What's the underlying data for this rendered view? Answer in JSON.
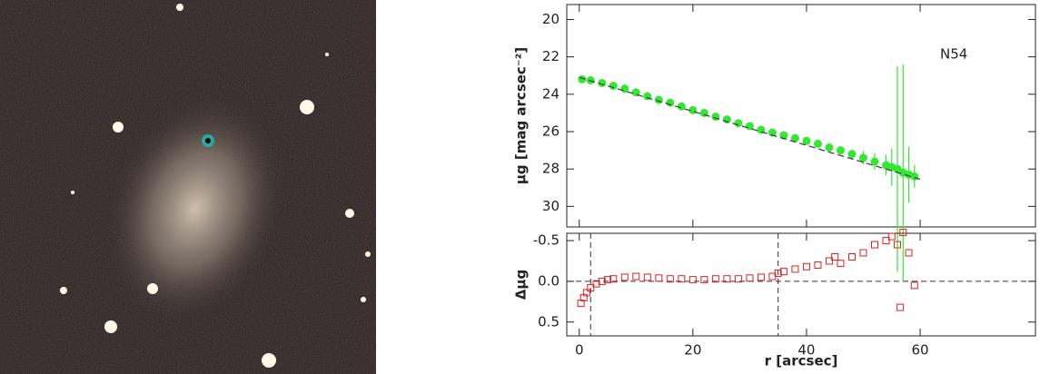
{
  "chart_data": [
    {
      "type": "scatter",
      "ylabel": "μg [mag arcsec⁻²]",
      "annotation": "N54",
      "xlim": [
        -2.2,
        80.3
      ],
      "xticks": [
        0,
        20,
        40,
        60
      ],
      "show_xtick_labels": false,
      "ylim": [
        31.1,
        19.2
      ],
      "yticks": [
        20,
        22,
        24,
        26,
        28,
        30
      ],
      "series": [
        {
          "color": "#33e833",
          "marker": "circle",
          "x": [
            0.5,
            2,
            4,
            6,
            8,
            10,
            12,
            14,
            16,
            18,
            20,
            22,
            24,
            26,
            28,
            30,
            32,
            34,
            36,
            38,
            40,
            42,
            44,
            46,
            48,
            50,
            52,
            54,
            55,
            56,
            57,
            58,
            59
          ],
          "values": [
            23.2,
            23.25,
            23.4,
            23.55,
            23.7,
            23.9,
            24.1,
            24.3,
            24.45,
            24.65,
            24.85,
            25.0,
            25.2,
            25.35,
            25.55,
            25.7,
            25.9,
            26.05,
            26.2,
            26.35,
            26.5,
            26.65,
            26.85,
            27.0,
            27.2,
            27.4,
            27.6,
            27.8,
            27.9,
            28.0,
            28.2,
            28.3,
            28.4
          ],
          "errors": [
            0.05,
            0.05,
            0.05,
            0.05,
            0.05,
            0.05,
            0.05,
            0.05,
            0.05,
            0.05,
            0.05,
            0.05,
            0.05,
            0.05,
            0.05,
            0.05,
            0.05,
            0.05,
            0.05,
            0.05,
            0.05,
            0.1,
            0.15,
            0.2,
            0.25,
            0.35,
            0.45,
            0.55,
            1.0,
            5.5,
            5.8,
            1.5,
            0.6
          ]
        },
        {
          "color": "#444444",
          "style": "dashed",
          "x": [
            0,
            60
          ],
          "values": [
            23.1,
            28.55
          ]
        }
      ]
    },
    {
      "type": "scatter",
      "xlabel": "r [arcsec]",
      "ylabel": "Δμg",
      "xlim": [
        -2.2,
        80.3
      ],
      "xticks": [
        0,
        20,
        40,
        60
      ],
      "show_xtick_labels": true,
      "ylim": [
        0.67,
        -0.59
      ],
      "yticks": [
        -0.5,
        {
          "value": 0,
          "label": "0.0"
        },
        0.5
      ],
      "hlines": [
        0
      ],
      "vlines": [
        2,
        35
      ],
      "series": [
        {
          "color": "#e02020",
          "marker": "square",
          "x": [
            0.3,
            0.8,
            1.3,
            2,
            3,
            4,
            5,
            6,
            8,
            10,
            12,
            14,
            16,
            18,
            20,
            22,
            24,
            26,
            28,
            30,
            32,
            34,
            35,
            36,
            38,
            40,
            42,
            44,
            45,
            46,
            48,
            50,
            52,
            54,
            55,
            56,
            56.5,
            57,
            58,
            59
          ],
          "values": [
            0.27,
            0.2,
            0.14,
            0.08,
            0.03,
            0,
            -0.02,
            -0.03,
            -0.05,
            -0.06,
            -0.05,
            -0.04,
            -0.03,
            -0.03,
            -0.02,
            -0.02,
            -0.03,
            -0.03,
            -0.03,
            -0.04,
            -0.05,
            -0.06,
            -0.1,
            -0.12,
            -0.15,
            -0.18,
            -0.2,
            -0.25,
            -0.3,
            -0.22,
            -0.3,
            -0.35,
            -0.45,
            -0.5,
            -0.55,
            -0.45,
            0.32,
            -0.6,
            -0.35,
            0.05
          ]
        }
      ]
    }
  ]
}
